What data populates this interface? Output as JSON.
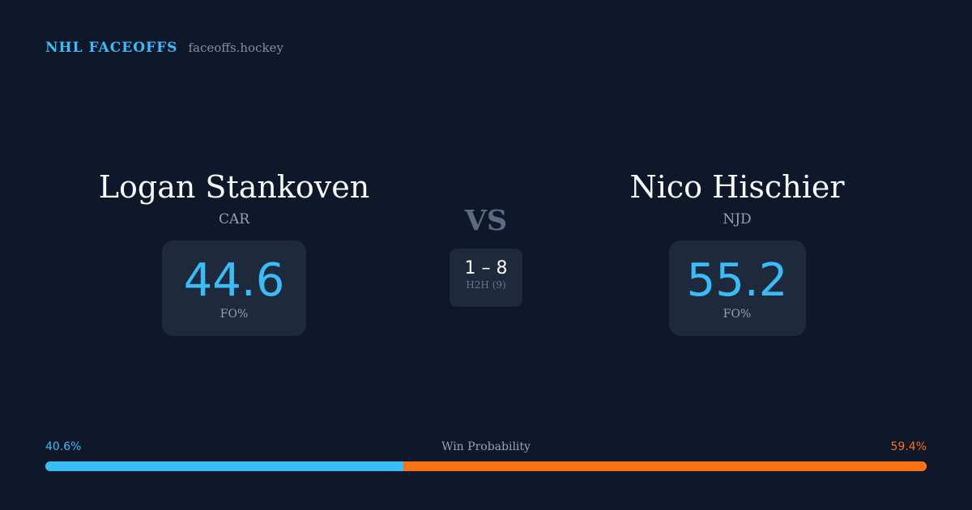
{
  "header": {
    "title": "NHL FACEOFFS",
    "site": "faceoffs.hockey"
  },
  "players": [
    {
      "name": "Logan Stankoven",
      "team": "CAR",
      "fo_pct": "44.6",
      "fo_label": "FO%"
    },
    {
      "name": "Nico Hischier",
      "team": "NJD",
      "fo_pct": "55.2",
      "fo_label": "FO%"
    }
  ],
  "vs": "VS",
  "h2h": {
    "score": "1 – 8",
    "label": "H2H (9)"
  },
  "win_probability": {
    "label": "Win Probability",
    "left_text": "40.6%",
    "right_text": "59.4%",
    "left_value": 40.6,
    "right_value": 59.4
  },
  "colors": {
    "accent_left": "#38bdf8",
    "accent_right": "#f97316",
    "background": "#0f172a",
    "card": "#1e293b"
  }
}
